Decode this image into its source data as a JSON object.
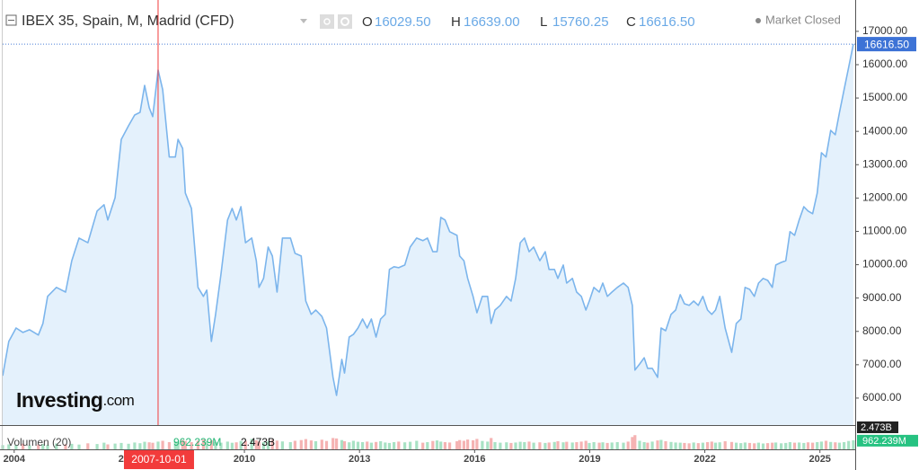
{
  "chart_data": {
    "type": "line",
    "title": "IBEX 35, Spain, M, Madrid (CFD)",
    "ohlc": [
      {
        "name": "O",
        "value": "16029.50"
      },
      {
        "name": "H",
        "value": "16639.00"
      },
      {
        "name": "L",
        "value": "15760.25"
      },
      {
        "name": "C",
        "value": "16616.50"
      }
    ],
    "status": "Market Closed",
    "brand": "Investing",
    "brand_suffix": ".com",
    "color": "#7cb5ec",
    "fill": "#e4f1fc",
    "x": [
      2003.7,
      2003.86,
      2004.05,
      2004.23,
      2004.4,
      2004.63,
      2004.75,
      2004.87,
      2005.1,
      2005.34,
      2005.5,
      2005.69,
      2005.92,
      2006.16,
      2006.34,
      2006.44,
      2006.63,
      2006.79,
      2006.98,
      2007.14,
      2007.28,
      2007.4,
      2007.52,
      2007.61,
      2007.75,
      2007.87,
      2008.04,
      2008.2,
      2008.27,
      2008.39,
      2008.46,
      2008.62,
      2008.79,
      2008.93,
      2009.02,
      2009.14,
      2009.25,
      2009.39,
      2009.56,
      2009.68,
      2009.79,
      2009.91,
      2010.03,
      2010.19,
      2010.31,
      2010.38,
      2010.5,
      2010.62,
      2010.73,
      2010.85,
      2010.99,
      2011.2,
      2011.32,
      2011.48,
      2011.6,
      2011.74,
      2011.86,
      2012.02,
      2012.14,
      2012.31,
      2012.4,
      2012.54,
      2012.61,
      2012.73,
      2012.84,
      2012.96,
      2013.08,
      2013.2,
      2013.31,
      2013.43,
      2013.55,
      2013.67,
      2013.78,
      2013.9,
      2014.02,
      2014.18,
      2014.32,
      2014.49,
      2014.65,
      2014.77,
      2014.91,
      2015.02,
      2015.12,
      2015.23,
      2015.35,
      2015.54,
      2015.61,
      2015.72,
      2015.82,
      2015.96,
      2016.06,
      2016.2,
      2016.34,
      2016.43,
      2016.53,
      2016.67,
      2016.83,
      2016.95,
      2017.07,
      2017.19,
      2017.3,
      2017.42,
      2017.54,
      2017.7,
      2017.84,
      2017.94,
      2018.08,
      2018.17,
      2018.31,
      2018.4,
      2018.55,
      2018.66,
      2018.78,
      2018.9,
      2018.99,
      2019.11,
      2019.25,
      2019.34,
      2019.46,
      2019.58,
      2019.72,
      2019.88,
      2020.0,
      2020.11,
      2020.18,
      2020.3,
      2020.42,
      2020.51,
      2020.63,
      2020.77,
      2020.86,
      2020.98,
      2021.12,
      2021.24,
      2021.36,
      2021.47,
      2021.59,
      2021.71,
      2021.83,
      2021.95,
      2022.07,
      2022.18,
      2022.28,
      2022.39,
      2022.53,
      2022.7,
      2022.82,
      2022.94,
      2023.05,
      2023.17,
      2023.29,
      2023.4,
      2023.52,
      2023.64,
      2023.76,
      2023.85,
      2023.99,
      2024.11,
      2024.22,
      2024.34,
      2024.46,
      2024.58,
      2024.69,
      2024.81,
      2024.93,
      2025.04,
      2025.16,
      2025.28,
      2025.4,
      2025.51,
      2025.63,
      2025.75,
      2025.87
    ],
    "values": [
      6670,
      7700,
      8100,
      7970,
      8050,
      7890,
      8240,
      9050,
      9320,
      9180,
      10120,
      10800,
      10660,
      11610,
      11800,
      11340,
      12010,
      13760,
      14170,
      14490,
      14570,
      15380,
      14710,
      14440,
      15840,
      15250,
      13230,
      13230,
      13760,
      13490,
      12150,
      11690,
      9320,
      9050,
      9240,
      7700,
      8510,
      9720,
      11340,
      11690,
      11340,
      11740,
      10660,
      10800,
      10120,
      9320,
      9590,
      10530,
      10260,
      9180,
      10800,
      10800,
      10340,
      10260,
      8910,
      8510,
      8640,
      8450,
      8100,
      6620,
      6080,
      7160,
      6750,
      7830,
      7910,
      8100,
      8370,
      8100,
      8370,
      7830,
      8370,
      8510,
      9860,
      9940,
      9910,
      9990,
      10530,
      10800,
      10720,
      10800,
      10390,
      10390,
      11420,
      11340,
      10990,
      10880,
      10260,
      10120,
      9590,
      9050,
      8560,
      9050,
      9050,
      8240,
      8640,
      8780,
      9050,
      8910,
      9590,
      10660,
      10800,
      10390,
      10530,
      10120,
      10390,
      9860,
      9860,
      9590,
      9990,
      9450,
      9590,
      9180,
      9050,
      8640,
      8910,
      9320,
      9180,
      9450,
      9050,
      9180,
      9320,
      9450,
      9320,
      8780,
      6840,
      7020,
      7210,
      6890,
      6890,
      6620,
      8100,
      8020,
      8510,
      8640,
      9100,
      8830,
      8780,
      8910,
      8780,
      9050,
      8640,
      8510,
      8640,
      9050,
      8100,
      7370,
      8240,
      8370,
      9320,
      9260,
      9050,
      9450,
      9590,
      9530,
      9320,
      9990,
      10070,
      10120,
      10990,
      10880,
      11340,
      11740,
      11610,
      11530,
      12150,
      13360,
      13230,
      14030,
      13900,
      14570,
      15250,
      15920,
      16616.5
    ],
    "xlim": [
      2003.7,
      2025.92
    ],
    "xticks": [
      2004,
      2007,
      2010,
      2013,
      2016,
      2019,
      2022,
      2025
    ],
    "ylim": [
      5190,
      17940
    ],
    "yticks": [
      {
        "value": 6000,
        "label": "6000.00"
      },
      {
        "value": 7000,
        "label": "7000.00"
      },
      {
        "value": 8000,
        "label": "8000.00"
      },
      {
        "value": 9000,
        "label": "9000.00"
      },
      {
        "value": 10000,
        "label": "10000.00"
      },
      {
        "value": 11000,
        "label": "11000.00"
      },
      {
        "value": 12000,
        "label": "12000.00"
      },
      {
        "value": 13000,
        "label": "13000.00"
      },
      {
        "value": 14000,
        "label": "14000.00"
      },
      {
        "value": 15000,
        "label": "15000.00"
      },
      {
        "value": 16000,
        "label": "16000.00"
      },
      {
        "value": 17000,
        "label": "17000.00"
      }
    ],
    "grid": false,
    "crosshair": {
      "x": 2007.75,
      "label": "2007-10-01",
      "color": "#f23b3b"
    },
    "volume": {
      "name": "Volumen (20)",
      "up_color": "#a8e2c4",
      "down_color": "#f5b3b3",
      "ylim": [
        0,
        2473
      ],
      "max_label": {
        "value": 2473,
        "label": "2.473B"
      },
      "last_value_label": "962.239M",
      "values": [
        450,
        520,
        480,
        600,
        430,
        510,
        560,
        470,
        620,
        540,
        580,
        500,
        640,
        560,
        700,
        520,
        610,
        680,
        590,
        720,
        650,
        800,
        740,
        690,
        820,
        900,
        760,
        850,
        700,
        980,
        880,
        760,
        920,
        1040,
        860,
        950,
        780,
        700,
        820,
        690,
        740,
        880,
        900,
        1100,
        960,
        820,
        780,
        860,
        1000,
        920,
        840,
        760,
        900,
        980,
        1080,
        940,
        860,
        1020,
        880,
        1200,
        1150,
        980,
        860,
        740,
        900,
        800,
        760,
        820,
        700,
        780,
        860,
        720,
        680,
        760,
        820,
        740,
        800,
        900,
        700,
        760,
        880,
        940,
        820,
        760,
        720,
        860,
        980,
        900,
        1040,
        960,
        1100,
        880,
        820,
        1200,
        760,
        700,
        740,
        680,
        720,
        800,
        760,
        820,
        700,
        740,
        680,
        720,
        780,
        860,
        740,
        800,
        720,
        760,
        820,
        900,
        680,
        760,
        700,
        740,
        680,
        720,
        760,
        700,
        820,
        1300,
        1500,
        900,
        760,
        700,
        820,
        940,
        1000,
        860,
        780,
        720,
        700,
        680,
        640,
        720,
        660,
        700,
        760,
        820,
        700,
        740,
        860,
        780,
        700,
        660,
        720,
        680,
        640,
        700,
        620,
        660,
        700,
        720,
        640,
        680,
        760,
        700,
        720,
        680,
        740,
        700,
        760,
        820,
        900,
        780,
        740,
        700,
        760,
        880,
        962.239
      ]
    }
  }
}
